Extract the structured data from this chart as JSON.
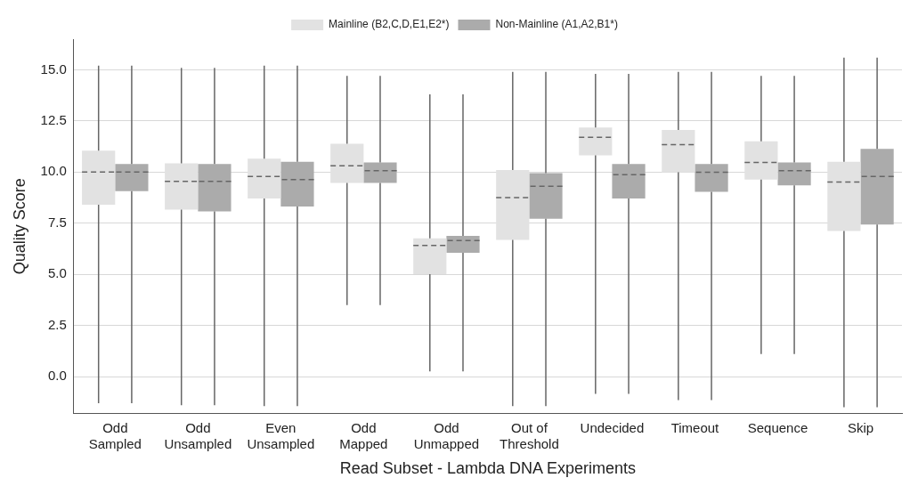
{
  "chart_data": {
    "type": "box",
    "xlabel": "Read Subset - Lambda DNA Experiments",
    "ylabel": "Quality Score",
    "categories": [
      "Odd Sampled",
      "Odd Unsampled",
      "Even Unsampled",
      "Odd Mapped",
      "Odd Unmapped",
      "Out of Threshold",
      "Undecided",
      "Timeout",
      "Sequence",
      "Skip"
    ],
    "ylim": [
      -1.8,
      16.5
    ],
    "yticks": [
      {
        "value": 0,
        "label": "0.0"
      },
      {
        "value": 2.5,
        "label": "2.5"
      },
      {
        "value": 5,
        "label": "5.0"
      },
      {
        "value": 7.5,
        "label": "7.5"
      },
      {
        "value": 10,
        "label": "10.0"
      },
      {
        "value": 12.5,
        "label": "12.5"
      },
      {
        "value": 15,
        "label": "15.0"
      }
    ],
    "grid": "y",
    "legend": "top",
    "series": [
      {
        "name": "Mainline (B2,C,D,E1,E2*)",
        "color": "#e2e2e2",
        "boxes": [
          {
            "low": -1.3,
            "q1": 8.4,
            "median": 10.0,
            "q3": 11.05,
            "high": 15.2
          },
          {
            "low": -1.4,
            "q1": 8.16,
            "median": 9.55,
            "q3": 10.43,
            "high": 15.1
          },
          {
            "low": -1.45,
            "q1": 8.71,
            "median": 9.79,
            "q3": 10.66,
            "high": 15.2
          },
          {
            "low": 3.5,
            "q1": 9.47,
            "median": 10.31,
            "q3": 11.38,
            "high": 14.7
          },
          {
            "low": 0.25,
            "q1": 5.01,
            "median": 6.41,
            "q3": 6.76,
            "high": 13.8
          },
          {
            "low": -1.45,
            "q1": 6.68,
            "median": 8.75,
            "q3": 10.1,
            "high": 14.9
          },
          {
            "low": -0.85,
            "q1": 10.82,
            "median": 11.7,
            "q3": 12.18,
            "high": 14.8
          },
          {
            "low": -1.15,
            "q1": 9.99,
            "median": 11.34,
            "q3": 12.06,
            "high": 14.9
          },
          {
            "low": 1.1,
            "q1": 9.63,
            "median": 10.47,
            "q3": 11.5,
            "high": 14.7
          },
          {
            "low": -1.5,
            "q1": 7.12,
            "median": 9.51,
            "q3": 10.5,
            "high": 15.6
          }
        ]
      },
      {
        "name": "Non-Mainline (A1,A2,B1*)",
        "color": "#ababab",
        "boxes": [
          {
            "low": -1.3,
            "q1": 9.07,
            "median": 10.0,
            "q3": 10.4,
            "high": 15.2
          },
          {
            "low": -1.4,
            "q1": 8.08,
            "median": 9.55,
            "q3": 10.4,
            "high": 15.1
          },
          {
            "low": -1.45,
            "q1": 8.32,
            "median": 9.63,
            "q3": 10.5,
            "high": 15.2
          },
          {
            "low": 3.5,
            "q1": 9.47,
            "median": 10.07,
            "q3": 10.47,
            "high": 14.7
          },
          {
            "low": 0.25,
            "q1": 6.05,
            "median": 6.65,
            "q3": 6.88,
            "high": 13.8
          },
          {
            "low": -1.45,
            "q1": 7.72,
            "median": 9.31,
            "q3": 9.95,
            "high": 14.9
          },
          {
            "low": -0.85,
            "q1": 8.71,
            "median": 9.87,
            "q3": 10.39,
            "high": 14.8
          },
          {
            "low": -1.15,
            "q1": 9.03,
            "median": 9.99,
            "q3": 10.39,
            "high": 14.9
          },
          {
            "low": 1.1,
            "q1": 9.35,
            "median": 10.07,
            "q3": 10.47,
            "high": 14.7
          },
          {
            "low": -1.5,
            "q1": 7.44,
            "median": 9.79,
            "q3": 11.14,
            "high": 15.6
          }
        ]
      }
    ]
  }
}
